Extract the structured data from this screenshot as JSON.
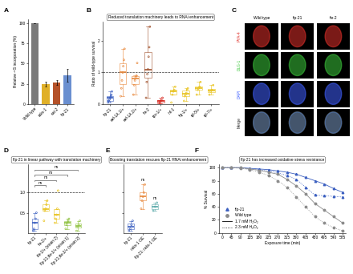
{
  "chart_data": [
    {
      "panel": "A",
      "type": "bar",
      "y_label": "Relative ³⁵S incorporation (%)",
      "categories": [
        "Wild type",
        "raks-1",
        "eat-2",
        "flp-21"
      ],
      "values": [
        100,
        25,
        27,
        36
      ],
      "errors": [
        0,
        3,
        3,
        8
      ],
      "colors": [
        "#7a7a7a",
        "#e0b028",
        "#b5522a",
        "#6a8fd0"
      ],
      "ylim": [
        0,
        105
      ],
      "yticks": [
        0,
        25,
        50,
        75,
        100
      ]
    },
    {
      "panel": "B",
      "type": "box",
      "title": "Reduced translation machinery leads to RNAi enhancement",
      "y_label": "Ratio of wild-type survival",
      "categories": [
        "flp-21",
        "eef-1A.1/+",
        "eef-1A.2/+",
        "ife-2",
        "rps-1/+",
        "inf-1",
        "ifg-1/+",
        "rpl-5/+",
        "rpl-7/+"
      ],
      "colors": [
        "#3b5fc0",
        "#e8873a",
        "#e8873a",
        "#a0522d",
        "#d7261e",
        "#e8c21c",
        "#e8c21c",
        "#e8c21c",
        "#e8c21c"
      ],
      "points": [
        [
          0.05,
          0.1,
          0.1,
          0.15,
          0.2,
          0.2,
          0.25,
          0.3,
          0.4
        ],
        [
          0.25,
          0.5,
          0.75,
          1.0,
          1.2,
          1.4,
          1.75
        ],
        [
          0.3,
          0.6,
          0.75,
          0.85,
          0.9,
          1.3
        ],
        [
          0.2,
          0.7,
          0.95,
          1.1,
          1.5,
          1.8,
          2.45
        ],
        [
          0.02,
          0.05,
          0.1,
          0.12,
          0.2
        ],
        [
          0.05,
          0.3,
          0.4,
          0.45,
          0.55
        ],
        [
          0.1,
          0.25,
          0.3,
          0.35,
          0.45,
          0.5
        ],
        [
          0.3,
          0.45,
          0.5,
          0.55,
          0.7
        ],
        [
          0.3,
          0.4,
          0.45,
          0.6
        ]
      ],
      "reference_value": 1,
      "ylim": [
        0,
        2.6
      ],
      "yticks": [
        0,
        1,
        2
      ]
    },
    {
      "panel": "C",
      "type": "image_grid",
      "columns": [
        "Wild type",
        "flp-21",
        "ife-2"
      ],
      "rows": [
        {
          "label": "PYA-4",
          "color": "#e0302a"
        },
        {
          "label": "DLG-1",
          "color": "#3cc83c"
        },
        {
          "label": "DAPI",
          "color": "#4060ff"
        },
        {
          "label": "Merge",
          "color": "#222222"
        }
      ]
    },
    {
      "panel": "D",
      "type": "box",
      "title": "flp-21 in linear pathway with translation machinery",
      "categories": [
        "flp-21",
        "ife-2/+",
        "ife-2/+ (strain 2)",
        "flp-21;ife-2/+ (strain 1)",
        "flp-21;ife-2/+ (strain 2)"
      ],
      "colors": [
        "#3b5fc0",
        "#e8c21c",
        "#e8c21c",
        "#8fc240",
        "#8fc240"
      ],
      "points": [
        [
          0.05,
          0.1,
          0.25,
          0.35,
          0.5
        ],
        [
          0.3,
          0.55,
          0.6,
          0.7,
          0.8
        ],
        [
          0.25,
          0.35,
          0.45,
          0.6,
          1.05
        ],
        [
          0.1,
          0.2,
          0.25,
          0.3,
          0.35
        ],
        [
          0.05,
          0.15,
          0.2,
          0.3
        ]
      ],
      "comparisons": [
        {
          "from": "flp-21",
          "to": "ife-2/+",
          "label": "ns"
        },
        {
          "from": "flp-21",
          "to": "ife-2/+ (strain 2)",
          "label": "ns"
        },
        {
          "from": "flp-21",
          "to": "flp-21;ife-2/+ (strain 1)",
          "label": "ns"
        },
        {
          "from": "flp-21",
          "to": "flp-21;ife-2/+ (strain 2)",
          "label": "ns"
        }
      ],
      "reference_value": 1,
      "ylim": [
        0,
        1.7
      ],
      "yticks": [
        0.5,
        {
          "value": 1,
          "label": "1.0"
        }
      ]
    },
    {
      "panel": "E",
      "type": "box",
      "title": "Boosting translation rescues flp-21 RNAi enhancement",
      "categories": [
        "flp-21",
        "raks-1 OE",
        "flp-21; raks-1 OE"
      ],
      "colors": [
        "#3b5fc0",
        "#e8873a",
        "#5aa9a9"
      ],
      "points": [
        [
          0.05,
          0.1,
          0.2,
          0.3
        ],
        [
          0.6,
          0.8,
          0.9,
          1.0,
          1.2
        ],
        [
          0.55,
          0.65,
          0.75
        ]
      ],
      "annotations": [
        {
          "category": "raks-1 OE",
          "label": "ns"
        },
        {
          "category": "flp-21; raks-1 OE",
          "label": "ns"
        }
      ],
      "ylim": [
        0,
        1.7
      ],
      "yticks": [
        0.5,
        {
          "value": 1,
          "label": "1.0"
        }
      ],
      "tick_labels": "x"
    },
    {
      "panel": "F",
      "type": "line",
      "title": "flp-21 has increased oxidative stress resistance",
      "x_label": "Exposure time (min)",
      "y_label": "% Survival",
      "x": [
        0,
        45,
        90,
        135,
        180,
        225,
        270,
        315,
        360,
        405,
        450,
        495,
        540,
        585
      ],
      "series": [
        {
          "name": "flp-21",
          "concentration": "1.7 mM H₂O₂",
          "color": "#3b5fc0",
          "marker": "triangle",
          "line_style": "solid",
          "values": [
            100,
            100,
            100,
            99,
            98,
            97,
            95,
            93,
            90,
            85,
            80,
            75,
            68,
            62
          ]
        },
        {
          "name": "flp-21",
          "concentration": "2.3 mM H₂O₂",
          "color": "#3b5fc0",
          "marker": "triangle",
          "line_style": "dotted",
          "values": [
            100,
            100,
            100,
            98,
            97,
            95,
            92,
            88,
            82,
            70,
            58,
            57,
            56,
            55
          ]
        },
        {
          "name": "Wild type",
          "concentration": "1.7 mM H₂O₂",
          "color": "#8c8c8c",
          "marker": "circle",
          "line_style": "solid",
          "values": [
            100,
            100,
            100,
            98,
            96,
            93,
            90,
            82,
            72,
            60,
            45,
            35,
            25,
            15
          ]
        },
        {
          "name": "Wild type",
          "concentration": "2.3 mM H₂O₂",
          "color": "#8c8c8c",
          "marker": "circle",
          "line_style": "dotted",
          "values": [
            100,
            100,
            99,
            97,
            93,
            88,
            80,
            70,
            55,
            40,
            25,
            15,
            8,
            3
          ]
        }
      ],
      "xlim": [
        -15,
        600
      ],
      "xticks": [
        0,
        45,
        90,
        135,
        180,
        225,
        270,
        315,
        360,
        405,
        450,
        495,
        540,
        585
      ],
      "ylim": [
        0,
        105
      ],
      "yticks": [
        0,
        20,
        40,
        60,
        80,
        100
      ],
      "legend": "lower left"
    }
  ]
}
